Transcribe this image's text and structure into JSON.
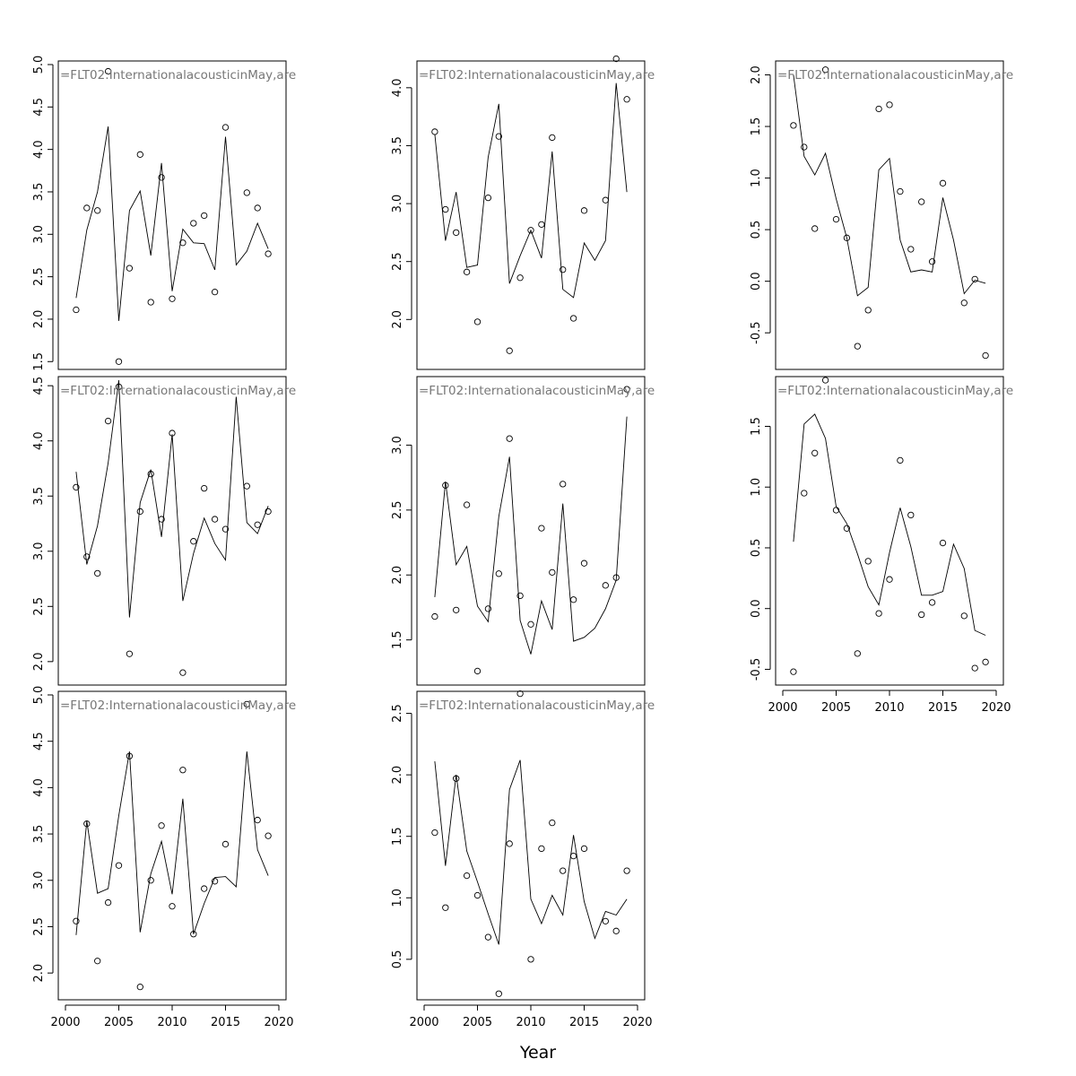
{
  "figure": {
    "xlabel": "Year"
  },
  "chart_data": [
    {
      "type": "scatter",
      "title": "=FLT02:InternationalacousticinMay,are",
      "xlim": [
        2000,
        2020
      ],
      "ylim": [
        1.45,
        5.0
      ],
      "yticks": [
        1.5,
        2.0,
        2.5,
        3.0,
        3.5,
        4.0,
        4.5,
        5.0
      ],
      "x_ticks_shown": false,
      "x": [
        2001,
        2002,
        2003,
        2004,
        2005,
        2006,
        2007,
        2008,
        2009,
        2010,
        2011,
        2012,
        2013,
        2014,
        2015,
        2016,
        2017,
        2018,
        2019
      ],
      "observed": [
        2.11,
        3.31,
        3.28,
        4.92,
        1.5,
        2.6,
        3.94,
        2.2,
        3.67,
        2.24,
        2.9,
        3.13,
        3.22,
        2.32,
        4.26,
        null,
        3.49,
        3.31,
        2.77
      ],
      "fitted": [
        2.25,
        3.05,
        3.5,
        4.27,
        1.98,
        3.28,
        3.51,
        2.75,
        3.84,
        2.33,
        3.06,
        2.9,
        2.89,
        2.58,
        4.15,
        2.64,
        2.8,
        3.13,
        2.83
      ]
    },
    {
      "type": "scatter",
      "title": "=FLT02:InternationalacousticinMay,are",
      "xlim": [
        2000,
        2020
      ],
      "ylim": [
        1.6,
        4.2
      ],
      "yticks": [
        2.0,
        2.5,
        3.0,
        3.5,
        4.0
      ],
      "x_ticks_shown": false,
      "x": [
        2001,
        2002,
        2003,
        2004,
        2005,
        2006,
        2007,
        2008,
        2009,
        2010,
        2011,
        2012,
        2013,
        2014,
        2015,
        2016,
        2017,
        2018,
        2019
      ],
      "observed": [
        3.62,
        2.95,
        2.75,
        2.41,
        1.98,
        3.05,
        3.58,
        1.73,
        2.36,
        2.77,
        2.82,
        3.57,
        2.43,
        2.01,
        2.94,
        null,
        3.03,
        4.25,
        3.9
      ],
      "fitted": [
        3.6,
        2.68,
        3.1,
        2.45,
        2.47,
        3.4,
        3.86,
        2.31,
        2.55,
        2.77,
        2.53,
        3.45,
        2.26,
        2.19,
        2.66,
        2.51,
        2.68,
        4.04,
        3.1
      ]
    },
    {
      "type": "scatter",
      "title": "=FLT02:InternationalacousticinMay,are",
      "xlim": [
        2000,
        2020
      ],
      "ylim": [
        -0.82,
        2.1
      ],
      "yticks": [
        -0.5,
        0.0,
        0.5,
        1.0,
        1.5,
        2.0
      ],
      "x_ticks_shown": false,
      "x": [
        2001,
        2002,
        2003,
        2004,
        2005,
        2006,
        2007,
        2008,
        2009,
        2010,
        2011,
        2012,
        2013,
        2014,
        2015,
        2016,
        2017,
        2018,
        2019
      ],
      "observed": [
        1.51,
        1.3,
        0.51,
        2.05,
        0.6,
        0.42,
        -0.63,
        -0.28,
        1.67,
        1.71,
        0.87,
        0.31,
        0.77,
        0.19,
        0.95,
        null,
        -0.21,
        0.02,
        -0.72
      ],
      "fitted": [
        2.0,
        1.21,
        1.03,
        1.24,
        0.8,
        0.42,
        -0.14,
        -0.06,
        1.08,
        1.19,
        0.4,
        0.09,
        0.11,
        0.09,
        0.81,
        0.4,
        -0.12,
        0.01,
        -0.02
      ]
    },
    {
      "type": "scatter",
      "title": "=FLT02:InternationalacousticinMay,are",
      "xlim": [
        2000,
        2020
      ],
      "ylim": [
        1.82,
        4.55
      ],
      "yticks": [
        2.0,
        2.5,
        3.0,
        3.5,
        4.0,
        4.5
      ],
      "x_ticks_shown": false,
      "x": [
        2001,
        2002,
        2003,
        2004,
        2005,
        2006,
        2007,
        2008,
        2009,
        2010,
        2011,
        2012,
        2013,
        2014,
        2015,
        2016,
        2017,
        2018,
        2019
      ],
      "observed": [
        3.58,
        2.95,
        2.8,
        4.18,
        4.49,
        2.07,
        3.36,
        3.7,
        3.29,
        4.07,
        1.9,
        3.09,
        3.57,
        3.29,
        3.2,
        null,
        3.59,
        3.24,
        3.36
      ],
      "fitted": [
        3.72,
        2.88,
        3.23,
        3.8,
        4.55,
        2.4,
        3.44,
        3.74,
        3.13,
        4.06,
        2.55,
        2.98,
        3.3,
        3.07,
        2.92,
        4.4,
        3.26,
        3.16,
        3.41
      ]
    },
    {
      "type": "scatter",
      "title": "=FLT02:InternationalacousticinMay,are",
      "xlim": [
        2000,
        2020
      ],
      "ylim": [
        1.18,
        3.5
      ],
      "yticks": [
        1.5,
        2.0,
        2.5,
        3.0
      ],
      "x_ticks_shown": false,
      "x": [
        2001,
        2002,
        2003,
        2004,
        2005,
        2006,
        2007,
        2008,
        2009,
        2010,
        2011,
        2012,
        2013,
        2014,
        2015,
        2016,
        2017,
        2018,
        2019
      ],
      "observed": [
        1.68,
        2.69,
        1.73,
        2.54,
        1.26,
        1.74,
        2.01,
        3.05,
        1.84,
        1.62,
        2.36,
        2.02,
        2.7,
        1.81,
        2.09,
        null,
        1.92,
        1.98,
        3.43
      ],
      "fitted": [
        1.83,
        2.72,
        2.08,
        2.22,
        1.76,
        1.64,
        2.45,
        2.91,
        1.65,
        1.39,
        1.8,
        1.58,
        2.55,
        1.49,
        1.52,
        1.59,
        1.74,
        1.96,
        3.22
      ]
    },
    {
      "type": "scatter",
      "title": "=FLT02:InternationalacousticinMay,are",
      "xlim": [
        2000,
        2020
      ],
      "ylim": [
        -0.6,
        1.88
      ],
      "yticks": [
        -0.5,
        0.0,
        0.5,
        1.0,
        1.5
      ],
      "x_ticks_shown": true,
      "xticks": [
        2000,
        2005,
        2010,
        2015,
        2020
      ],
      "x": [
        2001,
        2002,
        2003,
        2004,
        2005,
        2006,
        2007,
        2008,
        2009,
        2010,
        2011,
        2012,
        2013,
        2014,
        2015,
        2016,
        2017,
        2018,
        2019
      ],
      "observed": [
        -0.52,
        0.95,
        1.28,
        1.88,
        0.81,
        0.66,
        -0.37,
        0.39,
        -0.04,
        0.24,
        1.22,
        0.77,
        -0.05,
        0.05,
        0.54,
        null,
        -0.06,
        -0.49,
        -0.44
      ],
      "fitted": [
        0.55,
        1.52,
        1.6,
        1.4,
        0.84,
        0.7,
        0.45,
        0.18,
        0.03,
        0.46,
        0.83,
        0.51,
        0.11,
        0.11,
        0.14,
        0.53,
        0.33,
        -0.18,
        -0.22
      ]
    },
    {
      "type": "scatter",
      "title": "=FLT02:InternationalacousticinMay,are",
      "xlim": [
        2000,
        2020
      ],
      "ylim": [
        1.75,
        5.0
      ],
      "yticks": [
        2.0,
        2.5,
        3.0,
        3.5,
        4.0,
        4.5,
        5.0
      ],
      "x_ticks_shown": true,
      "xticks": [
        2000,
        2005,
        2010,
        2015,
        2020
      ],
      "x": [
        2001,
        2002,
        2003,
        2004,
        2005,
        2006,
        2007,
        2008,
        2009,
        2010,
        2011,
        2012,
        2013,
        2014,
        2015,
        2016,
        2017,
        2018,
        2019
      ],
      "observed": [
        2.56,
        3.61,
        2.13,
        2.76,
        3.16,
        4.34,
        1.85,
        3.0,
        3.59,
        2.72,
        4.19,
        2.42,
        2.91,
        2.99,
        3.39,
        null,
        4.9,
        3.65,
        3.48
      ],
      "fitted": [
        2.41,
        3.64,
        2.86,
        2.91,
        3.7,
        4.39,
        2.44,
        3.07,
        3.42,
        2.85,
        3.88,
        2.42,
        2.75,
        3.03,
        3.04,
        2.93,
        4.39,
        3.33,
        3.05
      ]
    },
    {
      "type": "scatter",
      "title": "=FLT02:InternationalacousticinMay,are",
      "xlim": [
        2000,
        2020
      ],
      "ylim": [
        0.2,
        2.65
      ],
      "yticks": [
        0.5,
        1.0,
        1.5,
        2.0,
        2.5
      ],
      "x_ticks_shown": true,
      "xticks": [
        2000,
        2005,
        2010,
        2015,
        2020
      ],
      "x": [
        2001,
        2002,
        2003,
        2004,
        2005,
        2006,
        2007,
        2008,
        2009,
        2010,
        2011,
        2012,
        2013,
        2014,
        2015,
        2016,
        2017,
        2018,
        2019
      ],
      "observed": [
        1.53,
        0.92,
        1.97,
        1.18,
        1.02,
        0.68,
        0.22,
        1.44,
        2.66,
        0.5,
        1.4,
        1.61,
        1.22,
        1.34,
        1.4,
        null,
        0.81,
        0.73,
        1.22
      ],
      "fitted": [
        2.11,
        1.26,
        2.0,
        1.38,
        1.13,
        0.87,
        0.62,
        1.88,
        2.12,
        0.99,
        0.79,
        1.02,
        0.86,
        1.51,
        0.97,
        0.67,
        0.89,
        0.86,
        0.99
      ]
    }
  ]
}
